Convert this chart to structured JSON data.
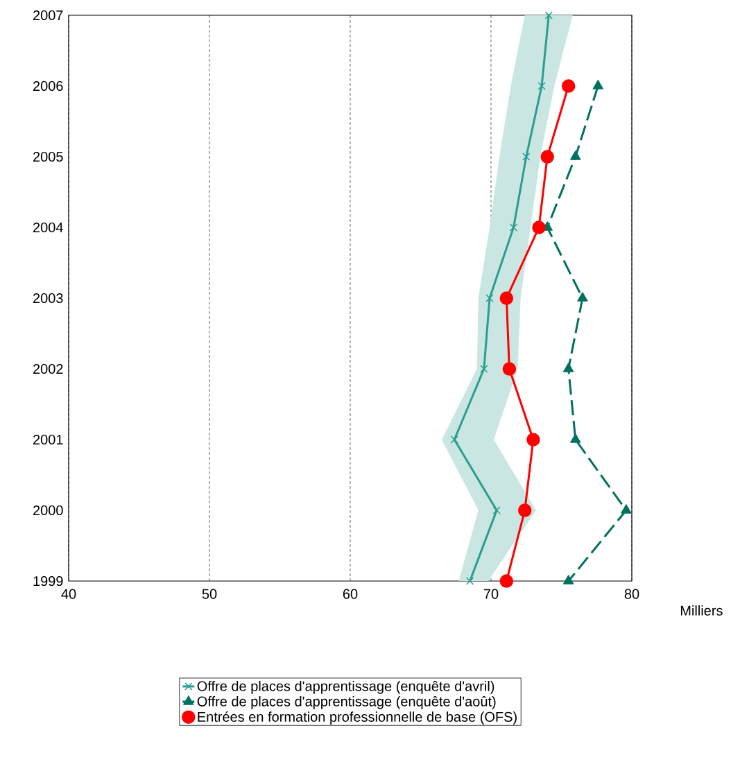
{
  "chart_data": {
    "type": "line",
    "orientation": "horizontal",
    "xlabel": "Milliers",
    "categories": [
      "2007",
      "2006",
      "2005",
      "2004",
      "2003",
      "2002",
      "2001",
      "2000",
      "1999"
    ],
    "xlim": [
      40,
      80
    ],
    "xticks": [
      40,
      50,
      60,
      70,
      80
    ],
    "grid": "x",
    "legend": "bottom",
    "series": [
      {
        "name": "Offre de places d'apprentissage (enquête d'avril)",
        "color": "#2a9d8f",
        "marker": "cross",
        "line_style": "solid",
        "values": [
          74.1,
          73.6,
          72.5,
          71.6,
          69.9,
          69.5,
          67.4,
          70.4,
          68.5
        ],
        "lower": [
          72.4,
          71.4,
          70.6,
          69.9,
          69.1,
          69.0,
          66.5,
          69.1,
          67.7
        ],
        "upper": [
          75.8,
          74.5,
          73.5,
          72.8,
          72.1,
          71.9,
          70.2,
          73.2,
          69.8
        ]
      },
      {
        "name": "Offre de places d'apprentissage (enquête d'août)",
        "color": "#00705f",
        "marker": "triangle",
        "line_style": "dashed",
        "values": [
          null,
          77.6,
          76.0,
          74.0,
          76.5,
          75.5,
          76.0,
          79.6,
          75.5
        ]
      },
      {
        "name": "Entrées en formation professionnelle de base (OFS)",
        "color": "#ff0000",
        "marker": "circle",
        "line_style": "solid",
        "values": [
          null,
          75.5,
          74.0,
          73.4,
          71.1,
          71.3,
          73.0,
          72.4,
          71.1
        ]
      }
    ]
  }
}
